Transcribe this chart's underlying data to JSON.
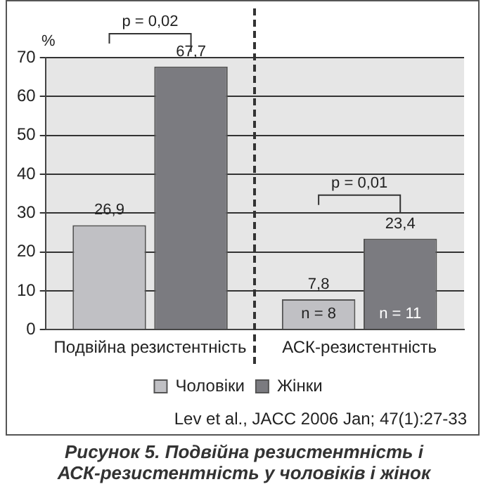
{
  "chart_data": {
    "type": "bar",
    "title": "Рисунок 5. Подвійна резистентність і АСК-резистентність у чоловіків і жінок",
    "ylabel": "%",
    "categories": [
      "Подвійна резистентність",
      "АСК-резистентність"
    ],
    "series": [
      {
        "name": "Чоловіки",
        "color": "#c0c0c4",
        "values": [
          26.9,
          7.8
        ],
        "value_labels": [
          "26,9",
          "7,8"
        ]
      },
      {
        "name": "Жінки",
        "color": "#7b7b80",
        "values": [
          67.7,
          23.4
        ],
        "value_labels": [
          "67,7",
          "23,4"
        ]
      }
    ],
    "ylim": [
      0,
      70
    ],
    "yticks": [
      0,
      10,
      20,
      30,
      40,
      50,
      60,
      70
    ],
    "grid": "y",
    "legend": "bottom",
    "annotations": [
      "p = 0,02",
      "p = 0,01",
      "n = 8",
      "n = 11",
      "Lev et al., JACC 2006 Jan; 47(1):27-33"
    ]
  }
}
